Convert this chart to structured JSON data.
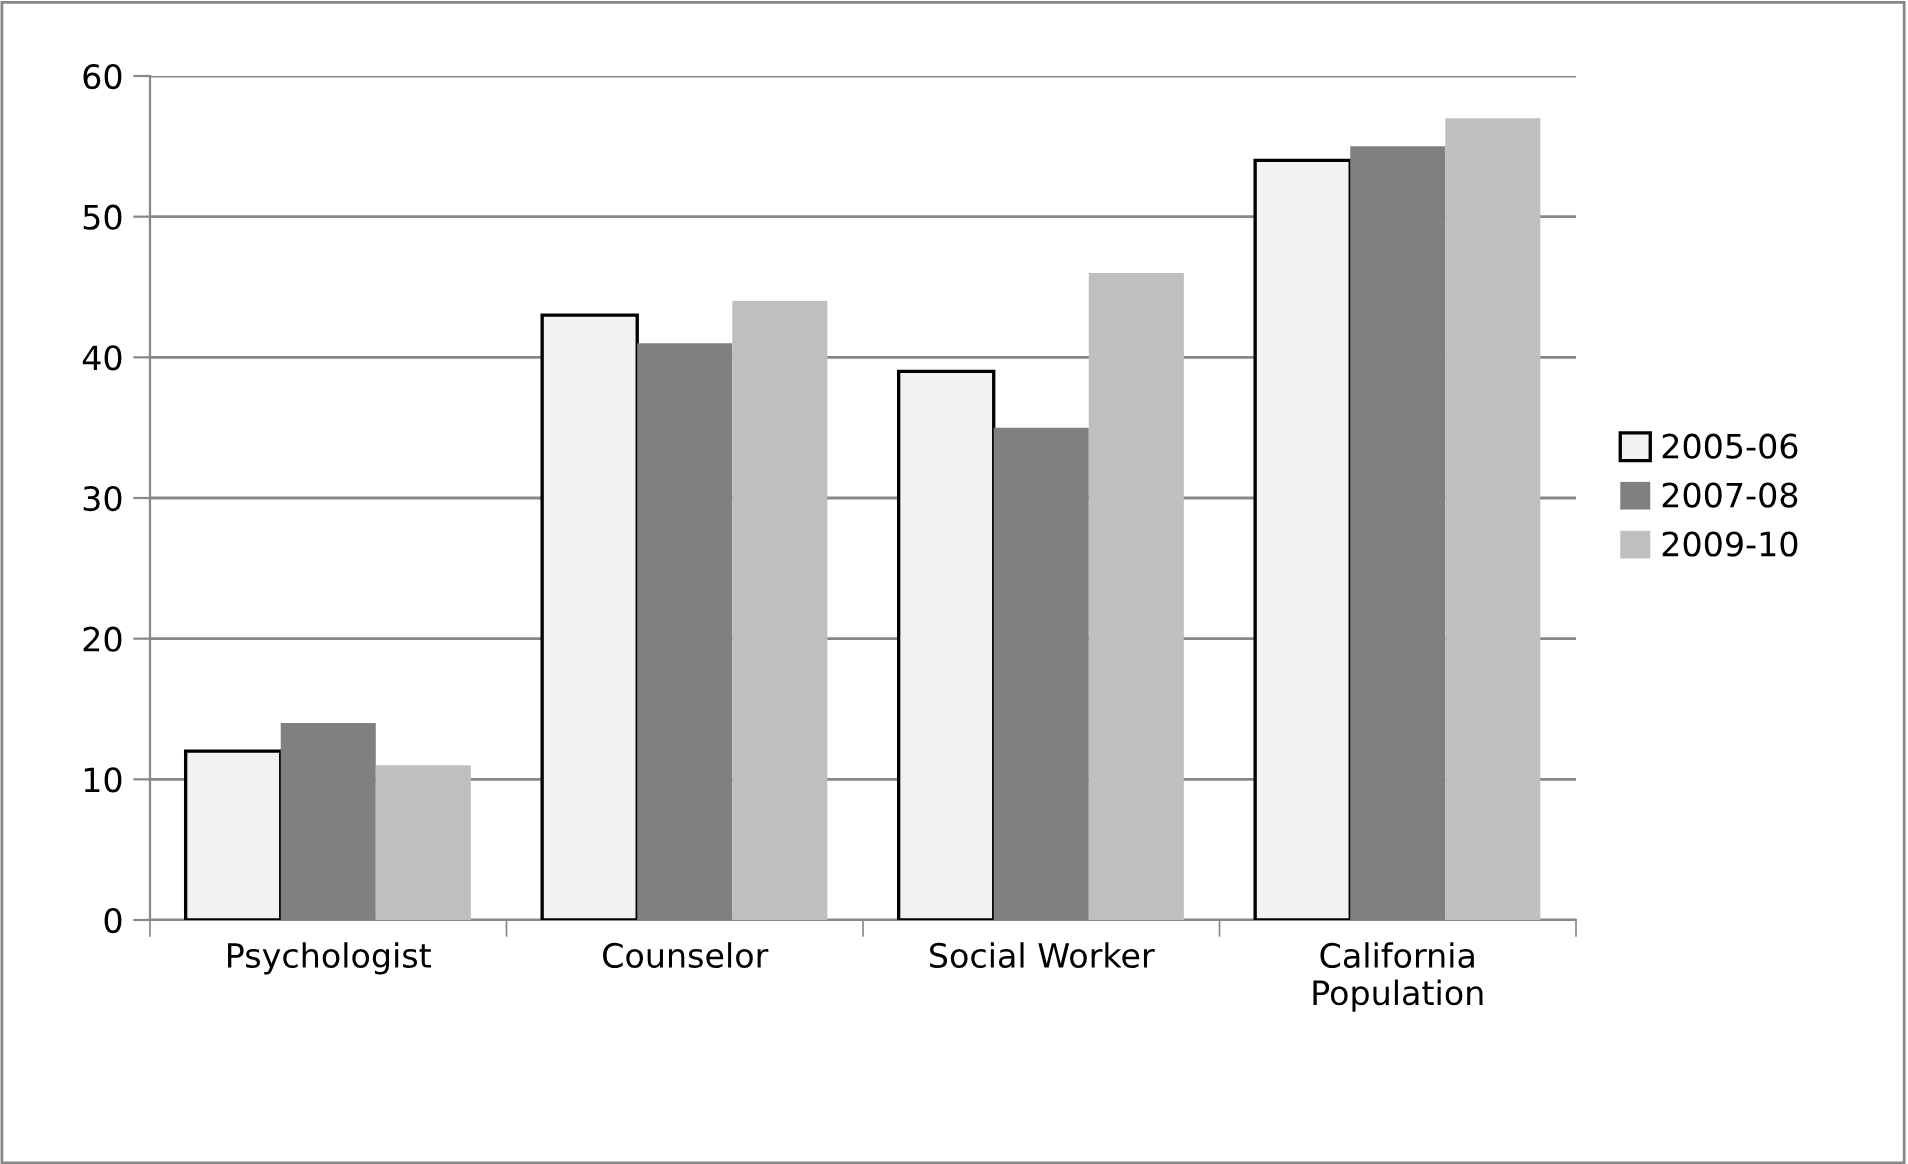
{
  "chart_data": {
    "type": "bar",
    "categories": [
      "Psychologist",
      "Counselor",
      "Social Worker",
      "California\nPopulation"
    ],
    "series": [
      {
        "name": "2005-06",
        "color": "#f2f2f2",
        "values": [
          12,
          43,
          39,
          54
        ]
      },
      {
        "name": "2007-08",
        "color": "#808080",
        "values": [
          14,
          41,
          35,
          55
        ]
      },
      {
        "name": "2009-10",
        "color": "#bfbfbf",
        "values": [
          11,
          44,
          46,
          57
        ]
      }
    ],
    "ylim": [
      0,
      60
    ],
    "yticks": [
      0,
      10,
      20,
      30,
      40,
      50,
      60
    ],
    "grid": "y",
    "legend": "right"
  }
}
